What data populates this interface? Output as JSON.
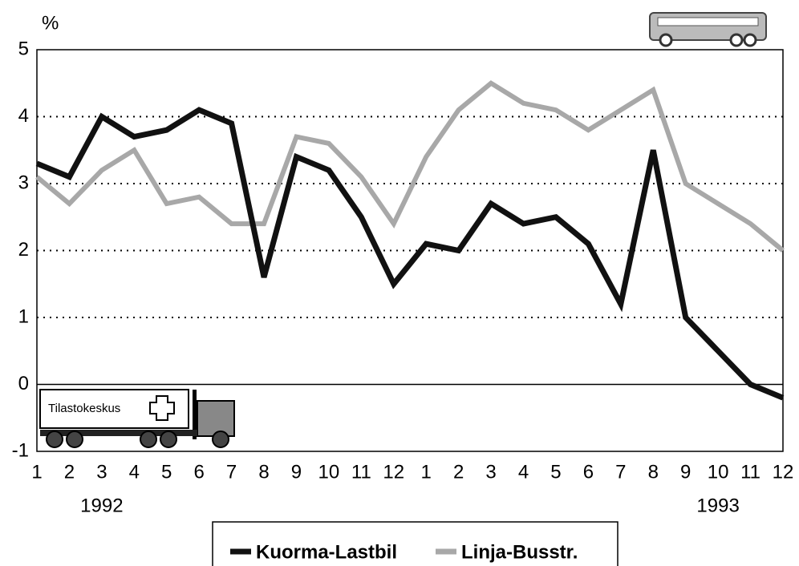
{
  "chart_data": {
    "type": "line",
    "y_label": "%",
    "categories": [
      "1",
      "2",
      "3",
      "4",
      "5",
      "6",
      "7",
      "8",
      "9",
      "10",
      "11",
      "12",
      "1",
      "2",
      "3",
      "4",
      "5",
      "6",
      "7",
      "8",
      "9",
      "10",
      "11",
      "12"
    ],
    "year_labels": [
      "1992",
      "1993"
    ],
    "series": [
      {
        "name": "Kuorma-Lastbil",
        "color": "#111111",
        "values": [
          3.3,
          3.1,
          4.0,
          3.7,
          3.8,
          4.1,
          3.9,
          1.6,
          3.4,
          3.2,
          2.5,
          1.5,
          2.1,
          2.0,
          2.7,
          2.4,
          2.5,
          2.1,
          1.2,
          3.5,
          1.0,
          0.5,
          0.0,
          -0.2
        ]
      },
      {
        "name": "Linja-Busstr.",
        "color": "#a8a8a8",
        "values": [
          3.1,
          2.7,
          3.2,
          3.5,
          2.7,
          2.8,
          2.4,
          2.4,
          3.7,
          3.6,
          3.1,
          2.4,
          3.4,
          4.1,
          4.5,
          4.2,
          4.1,
          3.8,
          4.1,
          4.4,
          3.0,
          2.7,
          2.4,
          2.0
        ]
      }
    ],
    "ylim": [
      -1,
      5
    ],
    "yticks": [
      -1,
      0,
      1,
      2,
      3,
      4,
      5
    ],
    "grid": true,
    "logo_text": "Tilastokeskus"
  }
}
